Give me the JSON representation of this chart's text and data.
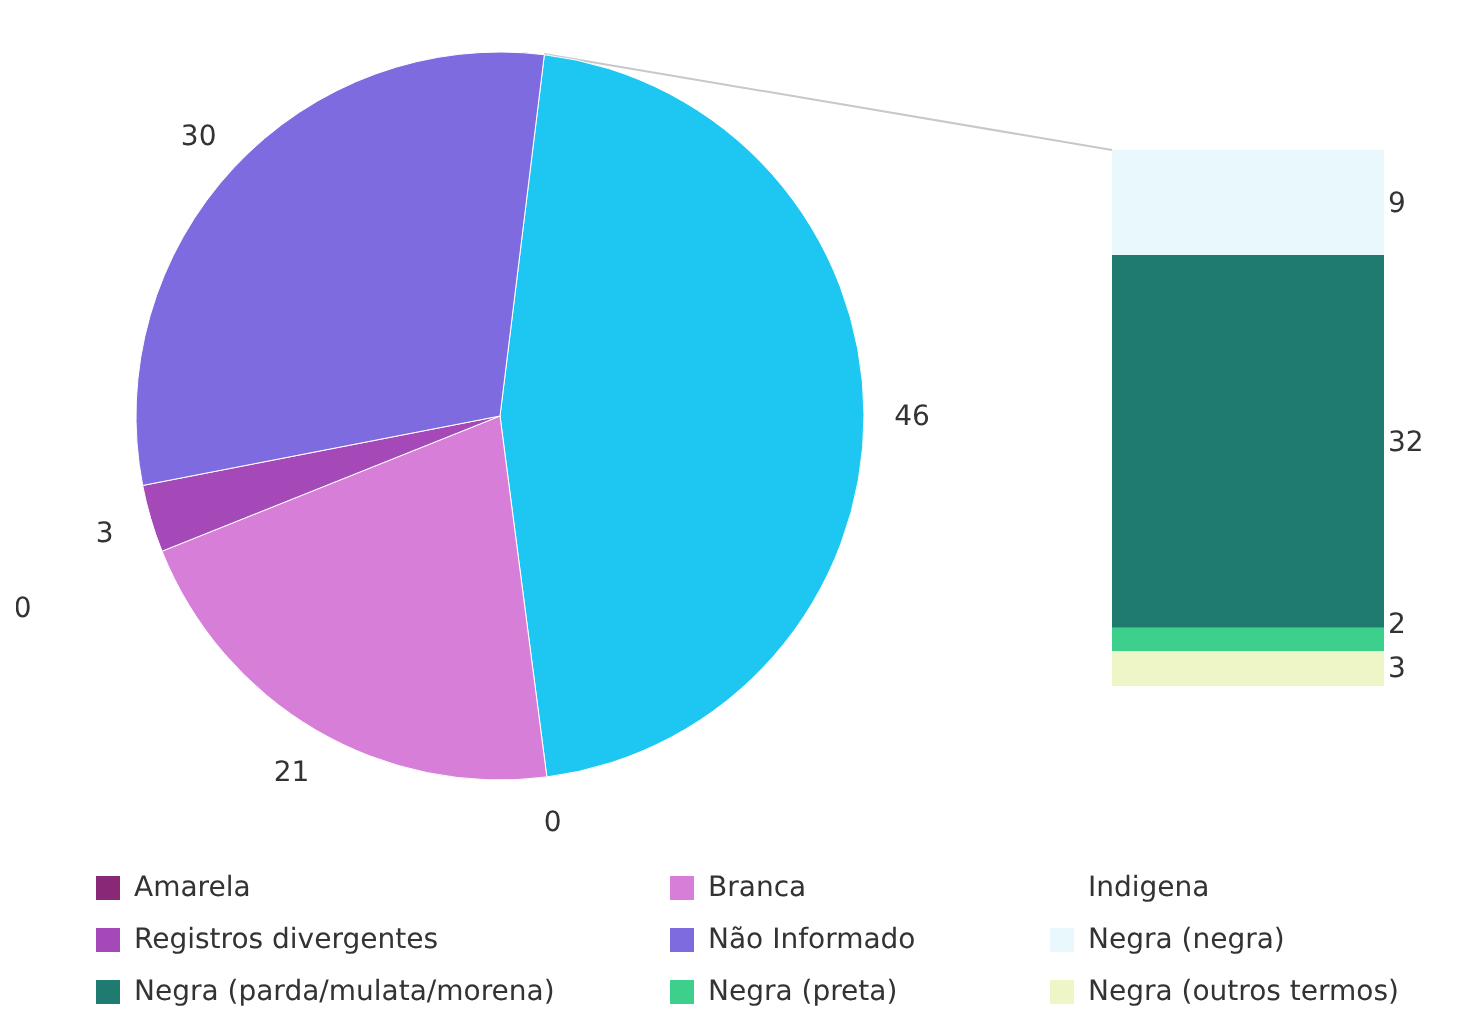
{
  "chart_data": [
    {
      "type": "pie",
      "categories": [
        null,
        "Amarela",
        "Branca",
        "Indigena",
        "Registros divergentes",
        "Não Informado"
      ],
      "values": [
        46,
        0,
        21,
        0,
        3,
        30
      ],
      "colors": [
        "#1ec6f2",
        "#8a2878",
        "#d77fd8",
        "#ffffff",
        "#a548b8",
        "#7f6be0"
      ],
      "value_labels": [
        "46",
        "0",
        "21",
        "0",
        "3",
        "30"
      ],
      "legend": "bottom"
    },
    {
      "type": "bar",
      "stacked": true,
      "categories": [
        null
      ],
      "data_labels": true,
      "legend": "bottom",
      "series": [
        {
          "name": "Negra (outros termos)",
          "color": "#eef5c6",
          "values": [
            3
          ]
        },
        {
          "name": "Negra (preta)",
          "color": "#3dcf8c",
          "values": [
            2
          ]
        },
        {
          "name": "Negra (parda/mulata/morena)",
          "color": "#1f7a70",
          "values": [
            32
          ]
        },
        {
          "name": "Negra (negra)",
          "color": "#e9f8fc",
          "values": [
            9
          ]
        }
      ]
    }
  ]
}
